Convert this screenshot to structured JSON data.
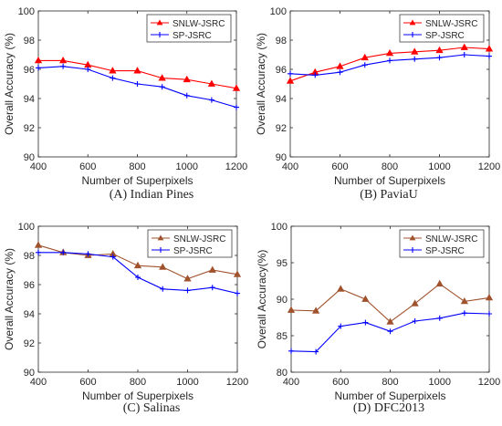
{
  "chart_data": [
    {
      "type": "line",
      "caption": "(A) Indian Pines",
      "xlabel": "Number of Superpixels",
      "ylabel": "Overall Accuracy (%)",
      "x": [
        400,
        500,
        600,
        700,
        800,
        900,
        1000,
        1100,
        1200
      ],
      "xticks": [
        400,
        600,
        800,
        1000,
        1200
      ],
      "ylim": [
        90,
        100
      ],
      "yticks": [
        90,
        92,
        94,
        96,
        98,
        100
      ],
      "legend": "top-right",
      "series": [
        {
          "name": "SNLW-JSRC",
          "color": "#ff0000",
          "marker": "triangle",
          "values": [
            96.6,
            96.6,
            96.3,
            95.9,
            95.9,
            95.4,
            95.3,
            95.0,
            94.7
          ]
        },
        {
          "name": "SP-JSRC",
          "color": "#0000ff",
          "marker": "plus",
          "values": [
            96.1,
            96.2,
            96.0,
            95.4,
            95.0,
            94.8,
            94.2,
            93.9,
            93.4
          ]
        }
      ]
    },
    {
      "type": "line",
      "caption": "(B) PaviaU",
      "xlabel": "Number of Superpixels",
      "ylabel": "Overall Accuracy (%)",
      "x": [
        400,
        500,
        600,
        700,
        800,
        900,
        1000,
        1100,
        1200
      ],
      "xticks": [
        400,
        600,
        800,
        1000,
        1200
      ],
      "ylim": [
        90,
        100
      ],
      "yticks": [
        90,
        92,
        94,
        96,
        98,
        100
      ],
      "legend": "top-right",
      "series": [
        {
          "name": "SNLW-JSRC",
          "color": "#ff0000",
          "marker": "triangle",
          "values": [
            95.2,
            95.8,
            96.2,
            96.8,
            97.1,
            97.2,
            97.3,
            97.5,
            97.4
          ]
        },
        {
          "name": "SP-JSRC",
          "color": "#0000ff",
          "marker": "plus",
          "values": [
            95.7,
            95.6,
            95.8,
            96.3,
            96.6,
            96.7,
            96.8,
            97.0,
            96.9
          ]
        }
      ]
    },
    {
      "type": "line",
      "caption": "(C) Salinas",
      "xlabel": "Number of Superpixels",
      "ylabel": "Overall Accuracy (%)",
      "x": [
        400,
        500,
        600,
        700,
        800,
        900,
        1000,
        1100,
        1200
      ],
      "xticks": [
        400,
        600,
        800,
        1000,
        1200
      ],
      "ylim": [
        90,
        100
      ],
      "yticks": [
        90,
        92,
        94,
        96,
        98,
        100
      ],
      "legend": "top-right",
      "series": [
        {
          "name": "SNLW-JSRC",
          "color": "#a0522d",
          "marker": "triangle",
          "values": [
            98.7,
            98.2,
            98.0,
            98.1,
            97.3,
            97.2,
            96.4,
            97.0,
            96.7
          ]
        },
        {
          "name": "SP-JSRC",
          "color": "#0000ff",
          "marker": "plus",
          "values": [
            98.2,
            98.2,
            98.1,
            97.9,
            96.5,
            95.7,
            95.6,
            95.8,
            95.4
          ]
        }
      ]
    },
    {
      "type": "line",
      "caption": "(D) DFC2013",
      "xlabel": "Number of Superpixels",
      "ylabel": "Overall Accuracy(%)",
      "x": [
        400,
        500,
        600,
        700,
        800,
        900,
        1000,
        1100,
        1200
      ],
      "xticks": [
        400,
        600,
        800,
        1000,
        1200
      ],
      "ylim": [
        80,
        100
      ],
      "yticks": [
        80,
        85,
        90,
        95,
        100
      ],
      "legend": "top-right",
      "series": [
        {
          "name": "SNLW-JSRC",
          "color": "#a0522d",
          "marker": "triangle",
          "values": [
            88.5,
            88.4,
            91.4,
            90.0,
            86.9,
            89.4,
            92.1,
            89.7,
            90.2
          ]
        },
        {
          "name": "SP-JSRC",
          "color": "#0000ff",
          "marker": "plus",
          "values": [
            82.9,
            82.8,
            86.3,
            86.8,
            85.6,
            87.0,
            87.4,
            88.1,
            88.0
          ]
        }
      ]
    }
  ]
}
